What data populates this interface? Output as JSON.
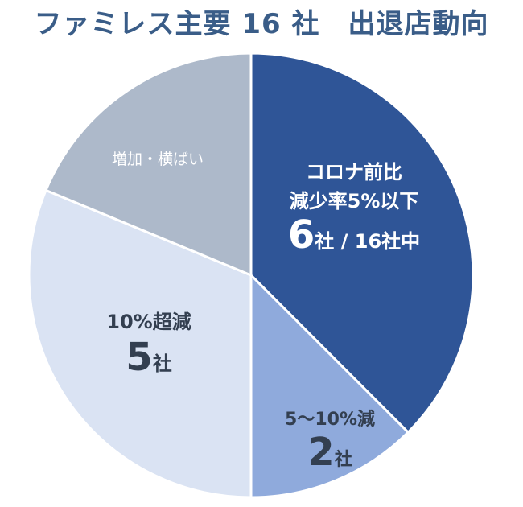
{
  "title": "ファミレス主要 16 社　出退店動向",
  "chart_data": {
    "type": "pie",
    "total": 16,
    "slices": [
      {
        "label": "コロナ前比 減少率5%以下",
        "count_text": "6社 / 16社中",
        "value": 6,
        "color": "#2f5597",
        "label_color": "#ffffff",
        "lines": [
          {
            "text": "コロナ前比"
          },
          {
            "text": "減少率5%以下"
          },
          {
            "big": "6",
            "small": "社 / 16社中"
          }
        ]
      },
      {
        "label": "5〜10%減",
        "count_text": "2社",
        "value": 2,
        "color": "#8faadc",
        "label_color": "#333f50",
        "lines": [
          {
            "text": "5〜10%減"
          },
          {
            "big": "2",
            "small": "社"
          }
        ]
      },
      {
        "label": "10%超減",
        "count_text": "5社",
        "value": 5,
        "color": "#dae3f3",
        "label_color": "#333f50",
        "lines": [
          {
            "text": "10%超減"
          },
          {
            "big": "5",
            "small": "社"
          }
        ]
      },
      {
        "label": "増加・横ばい",
        "count_text": "",
        "value": 3,
        "color": "#adb9ca",
        "label_color": "#ffffff",
        "lines": [
          {
            "text": "増加・横ばい"
          }
        ]
      }
    ]
  }
}
